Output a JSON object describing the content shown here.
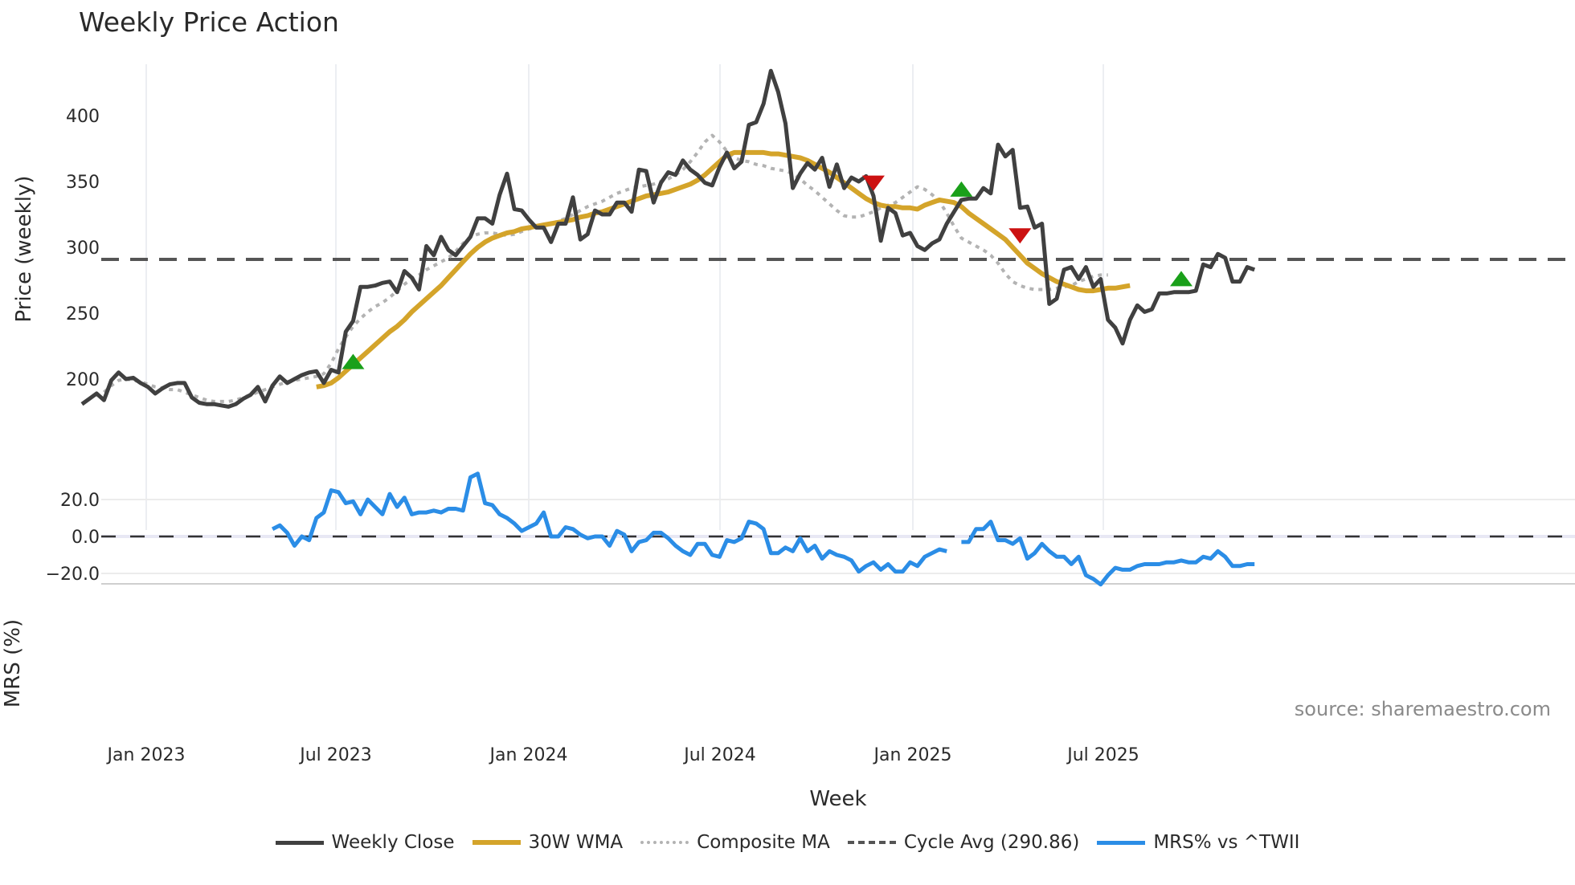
{
  "title": "Weekly Price Action",
  "source": "source: sharemaestro.com",
  "legend": [
    {
      "key": "close",
      "label": "Weekly Close",
      "color": "#404040",
      "style": "solid"
    },
    {
      "key": "wma",
      "label": "30W WMA",
      "color": "#d4a42a",
      "style": "solid"
    },
    {
      "key": "composite",
      "label": "Composite MA",
      "color": "#b3b3b3",
      "style": "dotted"
    },
    {
      "key": "cycle",
      "label": "Cycle Avg (290.86)",
      "color": "#555555",
      "style": "dashed"
    },
    {
      "key": "mrs",
      "label": "MRS% vs ^TWII",
      "color": "#2b8de6",
      "style": "solid"
    }
  ],
  "chart_data": [
    {
      "type": "line",
      "title": "Weekly Price Action",
      "xlabel": "Week",
      "ylabel": "Price (weekly)",
      "ylim": [
        165,
        440
      ],
      "yticks": [
        200,
        250,
        300,
        350,
        400
      ],
      "xticks": [
        "Jan 2023",
        "Jul 2023",
        "Jan 2024",
        "Jul 2024",
        "Jan 2025",
        "Jul 2025"
      ],
      "x_range": [
        "2022-11",
        "2025-11"
      ],
      "grid": "vertical",
      "cycle_avg": 290.86,
      "series": [
        {
          "name": "Weekly Close",
          "color": "#404040",
          "values": [
            181,
            185,
            189,
            184,
            199,
            205,
            200,
            201,
            197,
            194,
            189,
            193,
            196,
            197,
            197,
            186,
            182,
            181,
            181,
            180,
            179,
            181,
            185,
            188,
            194,
            183,
            195,
            202,
            197,
            200,
            203,
            205,
            206,
            197,
            207,
            205,
            236,
            244,
            270,
            270,
            271,
            273,
            274,
            266,
            282,
            277,
            268,
            301,
            294,
            308,
            298,
            294,
            301,
            308,
            322,
            322,
            318,
            340,
            356,
            329,
            328,
            321,
            315,
            315,
            304,
            318,
            318,
            338,
            306,
            310,
            328,
            325,
            325,
            334,
            334,
            327,
            359,
            358,
            334,
            349,
            357,
            355,
            366,
            359,
            355,
            349,
            347,
            361,
            372,
            360,
            365,
            393,
            395,
            409,
            434,
            418,
            394,
            345,
            356,
            364,
            359,
            368,
            346,
            363,
            345,
            353,
            350,
            354,
            339,
            305,
            330,
            326,
            309,
            311,
            301,
            298,
            303,
            306,
            318,
            327,
            336,
            337,
            337,
            345,
            341,
            378,
            369,
            374,
            330,
            331,
            315,
            318,
            257,
            261,
            283,
            285,
            276,
            285,
            270,
            276,
            245,
            239,
            227,
            245,
            256,
            251,
            253,
            265,
            265,
            266,
            266,
            266,
            267,
            287,
            285,
            295,
            292,
            274,
            274,
            285,
            283
          ]
        },
        {
          "name": "30W WMA",
          "color": "#d4a42a",
          "start_index": 32,
          "values": [
            194,
            195,
            197,
            201,
            206,
            211,
            216,
            221,
            226,
            231,
            236,
            240,
            245,
            251,
            256,
            261,
            266,
            271,
            277,
            283,
            289,
            295,
            300,
            304,
            307,
            309,
            311,
            312,
            314,
            315,
            316,
            317,
            318,
            319,
            320,
            321,
            323,
            324,
            326,
            327,
            329,
            331,
            333,
            335,
            337,
            339,
            340,
            341,
            342,
            344,
            346,
            348,
            351,
            355,
            360,
            365,
            370,
            372,
            372,
            372,
            372,
            372,
            371,
            371,
            370,
            369,
            368,
            366,
            363,
            360,
            357,
            353,
            349,
            345,
            341,
            337,
            334,
            332,
            331,
            331,
            330,
            330,
            329,
            332,
            334,
            336,
            335,
            334,
            331,
            326,
            322,
            318,
            314,
            310,
            306,
            300,
            294,
            288,
            284,
            280,
            277,
            274,
            272,
            270,
            268,
            267,
            267,
            268,
            269,
            269,
            270,
            271
          ]
        },
        {
          "name": "Composite MA",
          "color": "#b3b3b3",
          "start_index": 3,
          "values": [
            190,
            195,
            199,
            200,
            199,
            198,
            196,
            194,
            193,
            192,
            192,
            190,
            188,
            186,
            184,
            183,
            183,
            183,
            184,
            186,
            188,
            190,
            192,
            194,
            196,
            198,
            199,
            200,
            201,
            202,
            204,
            212,
            223,
            232,
            240,
            246,
            251,
            255,
            258,
            262,
            267,
            272,
            276,
            279,
            283,
            286,
            289,
            292,
            297,
            303,
            308,
            310,
            311,
            311,
            310,
            309,
            310,
            312,
            314,
            315,
            316,
            318,
            320,
            322,
            325,
            328,
            331,
            333,
            335,
            338,
            341,
            343,
            345,
            346,
            347,
            348,
            350,
            352,
            355,
            359,
            365,
            372,
            380,
            385,
            380,
            373,
            368,
            366,
            365,
            363,
            362,
            360,
            359,
            358,
            356,
            352,
            347,
            343,
            338,
            333,
            328,
            324,
            323,
            323,
            325,
            327,
            330,
            332,
            334,
            338,
            342,
            346,
            344,
            340,
            335,
            326,
            316,
            307,
            304,
            301,
            298,
            294,
            288,
            280,
            274,
            271,
            269,
            268,
            268,
            268,
            269,
            270,
            271,
            274,
            276,
            278,
            279,
            279
          ]
        },
        {
          "name": "Cycle Avg",
          "color": "#555555",
          "style": "dashed",
          "values": [
            290.86
          ]
        }
      ],
      "annotations": [
        {
          "type": "buy",
          "marker": "triangle-up",
          "color": "#1aa01a",
          "index": 37,
          "y": 213
        },
        {
          "type": "sell",
          "marker": "triangle-down",
          "color": "#cc1111",
          "index": 108,
          "y": 349
        },
        {
          "type": "buy",
          "marker": "triangle-up",
          "color": "#1aa01a",
          "index": 120,
          "y": 344
        },
        {
          "type": "sell",
          "marker": "triangle-down",
          "color": "#cc1111",
          "index": 128,
          "y": 309
        },
        {
          "type": "buy",
          "marker": "triangle-up",
          "color": "#1aa01a",
          "index": 150,
          "y": 276
        }
      ]
    },
    {
      "type": "line",
      "title": "",
      "xlabel": "Week",
      "ylabel": "MRS (%)",
      "ylim": [
        -30,
        38
      ],
      "yticks": [
        -20.0,
        0.0,
        20.0
      ],
      "ytick_labels": [
        "−20.0",
        "0.0",
        "20.0"
      ],
      "zero_line": "dashed",
      "series": [
        {
          "name": "MRS% vs ^TWII",
          "color": "#2b8de6",
          "start_index": 26,
          "values": [
            4,
            6,
            2,
            -5,
            0,
            -2,
            10,
            13,
            25,
            24,
            18,
            19,
            12,
            20,
            16,
            12,
            23,
            16,
            21,
            12,
            13,
            13,
            14,
            13,
            15,
            15,
            14,
            32,
            34,
            18,
            17,
            12,
            10,
            7,
            3,
            5,
            7,
            13,
            0,
            0,
            5,
            4,
            1,
            -1,
            0,
            0,
            -5,
            3,
            1,
            -8,
            -3,
            -2,
            2,
            2,
            -1,
            -5,
            -8,
            -10,
            -4,
            -4,
            -10,
            -11,
            -2,
            -3,
            -1,
            8,
            7,
            4,
            -9,
            -9,
            -6,
            -8,
            -1,
            -8,
            -5,
            -12,
            -8,
            -10,
            -11,
            -13,
            -19,
            -16,
            -14,
            -18,
            -15,
            -19,
            -19,
            -14,
            -16,
            -11,
            -9,
            -7,
            -8,
            null,
            -3,
            -3,
            4,
            4,
            8,
            -2,
            -2,
            -4,
            -1,
            -12,
            -9,
            -4,
            -8,
            -11,
            -11,
            -15,
            -11,
            -21,
            -23,
            -26,
            -21,
            -17,
            -18,
            -18,
            -16,
            -15,
            -15,
            -15,
            -14,
            -14,
            -13,
            -14,
            -14,
            -11,
            -12,
            -8,
            -11,
            -16,
            -16,
            -15,
            -15
          ]
        }
      ]
    }
  ]
}
